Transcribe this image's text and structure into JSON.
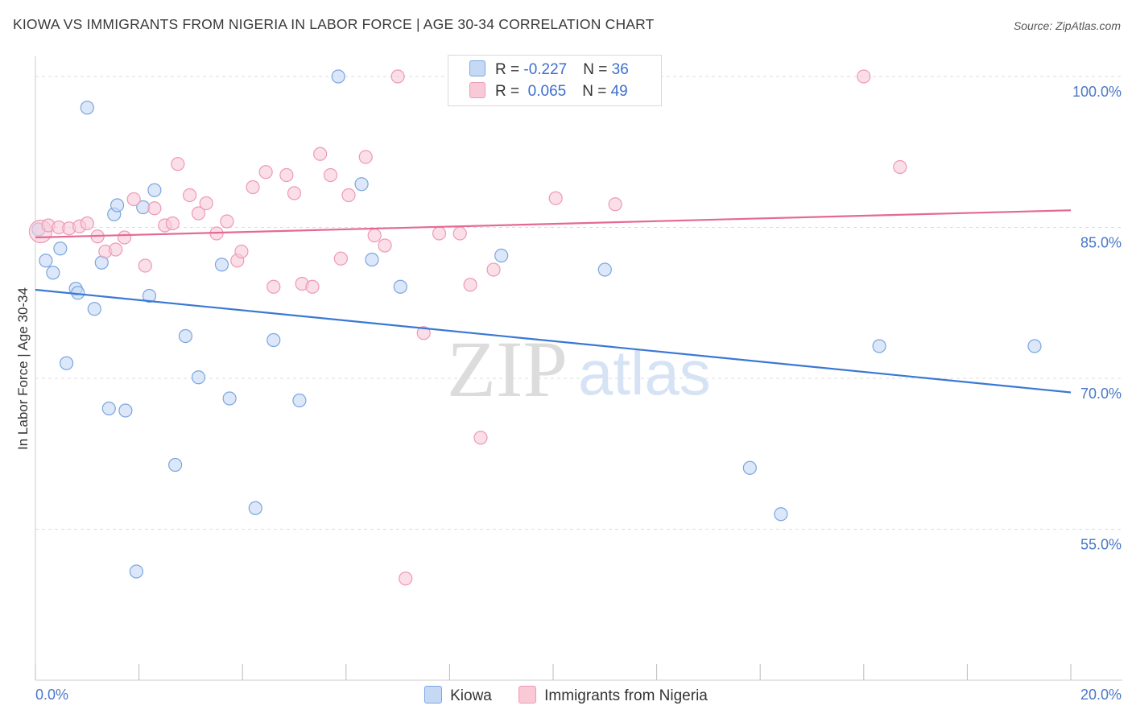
{
  "title": "KIOWA VS IMMIGRANTS FROM NIGERIA IN LABOR FORCE | AGE 30-34 CORRELATION CHART",
  "source": "Source: ZipAtlas.com",
  "watermark": {
    "zip": "ZIP",
    "atlas": "atlas"
  },
  "legend": {
    "rows": [
      {
        "r_label": "R = ",
        "r_value": "-0.227",
        "n_label": "N = ",
        "n_value": "36"
      },
      {
        "r_label": "R = ",
        "r_value": " 0.065",
        "n_label": "N = ",
        "n_value": "49"
      }
    ]
  },
  "chart_data": {
    "type": "scatter",
    "title": "KIOWA VS IMMIGRANTS FROM NIGERIA IN LABOR FORCE | AGE 30-34 CORRELATION CHART",
    "xlabel": "",
    "ylabel": "In Labor Force | Age 30-34",
    "xlim": [
      0,
      20
    ],
    "ylim": [
      40,
      102
    ],
    "x_tick_labels": [
      "0.0%",
      "20.0%"
    ],
    "y_ticks": [
      {
        "value": 100,
        "label": "100.0%"
      },
      {
        "value": 85,
        "label": "85.0%"
      },
      {
        "value": 70,
        "label": "70.0%"
      },
      {
        "value": 55,
        "label": "55.0%"
      }
    ],
    "colors": {
      "kiowa_fill": "#c5d9f5",
      "kiowa_stroke": "#7aa6e0",
      "kiowa_line": "#3a78d4",
      "nigeria_fill": "#f9c9d8",
      "nigeria_stroke": "#ee9ab4",
      "nigeria_line": "#e46a93",
      "tick_text": "#4a78c8"
    },
    "series": [
      {
        "name": "Kiowa",
        "trend": {
          "x0": 0,
          "y0": 78.8,
          "x1": 20,
          "y1": 68.6
        },
        "points": [
          [
            0.06,
            84.8
          ],
          [
            0.2,
            81.7
          ],
          [
            0.34,
            80.5
          ],
          [
            0.48,
            82.9
          ],
          [
            0.6,
            71.5
          ],
          [
            0.78,
            78.9
          ],
          [
            0.82,
            78.5
          ],
          [
            1.0,
            96.9
          ],
          [
            1.14,
            76.9
          ],
          [
            1.28,
            81.5
          ],
          [
            1.42,
            67.0
          ],
          [
            1.52,
            86.3
          ],
          [
            1.58,
            87.2
          ],
          [
            1.74,
            66.8
          ],
          [
            1.95,
            50.8
          ],
          [
            2.08,
            87.0
          ],
          [
            2.2,
            78.2
          ],
          [
            2.3,
            88.7
          ],
          [
            2.7,
            61.4
          ],
          [
            2.9,
            74.2
          ],
          [
            3.15,
            70.1
          ],
          [
            3.6,
            81.3
          ],
          [
            3.75,
            68.0
          ],
          [
            4.25,
            57.1
          ],
          [
            4.6,
            73.8
          ],
          [
            5.1,
            67.8
          ],
          [
            5.85,
            100.0
          ],
          [
            6.3,
            89.3
          ],
          [
            6.5,
            81.8
          ],
          [
            7.05,
            79.1
          ],
          [
            9.0,
            82.2
          ],
          [
            11.0,
            80.8
          ],
          [
            13.8,
            61.1
          ],
          [
            14.4,
            56.5
          ],
          [
            16.3,
            73.2
          ],
          [
            19.3,
            73.2
          ]
        ]
      },
      {
        "name": "Immigrants from Nigeria",
        "trend": {
          "x0": 0,
          "y0": 84.0,
          "x1": 20,
          "y1": 86.7
        },
        "points": [
          [
            0.1,
            84.6
          ],
          [
            0.25,
            85.2
          ],
          [
            0.45,
            85.0
          ],
          [
            0.65,
            84.9
          ],
          [
            0.85,
            85.1
          ],
          [
            1.0,
            85.4
          ],
          [
            1.2,
            84.1
          ],
          [
            1.35,
            82.6
          ],
          [
            1.55,
            82.8
          ],
          [
            1.72,
            84.0
          ],
          [
            1.9,
            87.8
          ],
          [
            2.12,
            81.2
          ],
          [
            2.3,
            86.9
          ],
          [
            2.5,
            85.2
          ],
          [
            2.65,
            85.4
          ],
          [
            2.75,
            91.3
          ],
          [
            2.98,
            88.2
          ],
          [
            3.15,
            86.4
          ],
          [
            3.3,
            87.4
          ],
          [
            3.5,
            84.4
          ],
          [
            3.7,
            85.6
          ],
          [
            3.9,
            81.7
          ],
          [
            3.98,
            82.6
          ],
          [
            4.2,
            89.0
          ],
          [
            4.45,
            90.5
          ],
          [
            4.6,
            79.1
          ],
          [
            4.85,
            90.2
          ],
          [
            5.0,
            88.4
          ],
          [
            5.15,
            79.4
          ],
          [
            5.35,
            79.1
          ],
          [
            5.5,
            92.3
          ],
          [
            5.7,
            90.2
          ],
          [
            5.9,
            81.9
          ],
          [
            6.05,
            88.2
          ],
          [
            6.38,
            92.0
          ],
          [
            6.55,
            84.2
          ],
          [
            6.75,
            83.2
          ],
          [
            7.0,
            100.0
          ],
          [
            7.15,
            50.1
          ],
          [
            7.5,
            74.5
          ],
          [
            7.8,
            84.4
          ],
          [
            8.2,
            84.4
          ],
          [
            8.4,
            79.3
          ],
          [
            8.6,
            64.1
          ],
          [
            8.85,
            80.8
          ],
          [
            10.05,
            87.9
          ],
          [
            11.2,
            87.3
          ],
          [
            16.0,
            100.0
          ],
          [
            16.7,
            91.0
          ]
        ]
      }
    ]
  },
  "bottom_legend": [
    {
      "label": "Kiowa"
    },
    {
      "label": "Immigrants from Nigeria"
    }
  ]
}
